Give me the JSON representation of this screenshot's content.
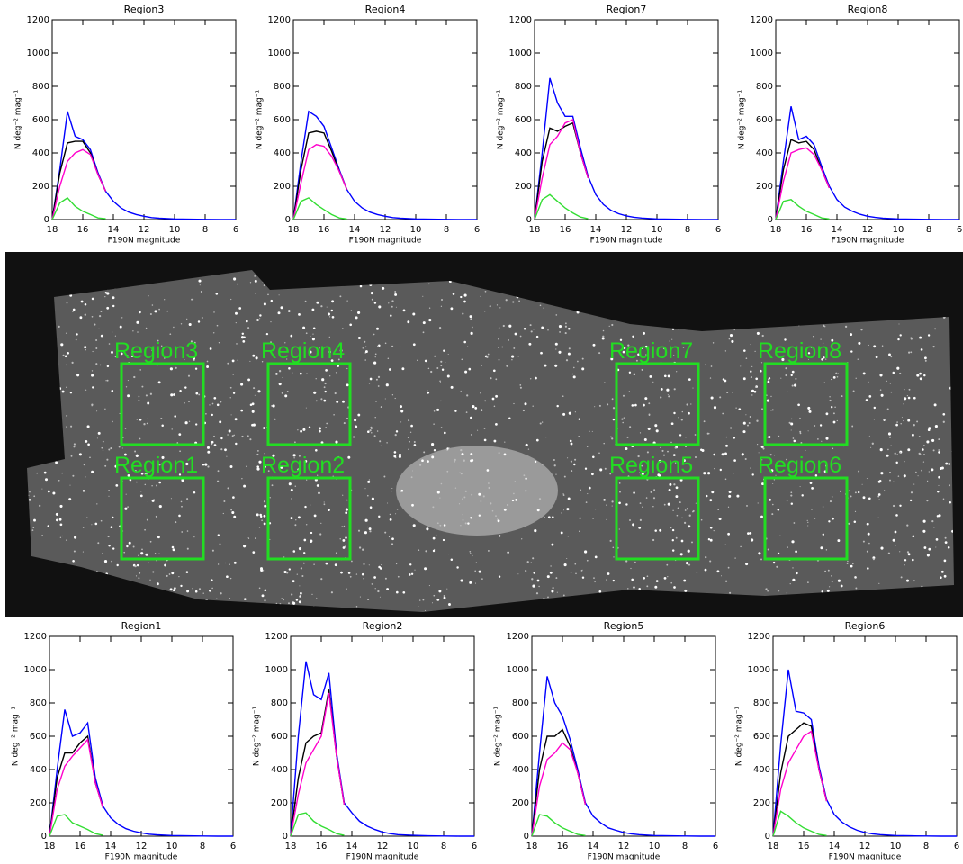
{
  "chart_data": [
    {
      "type": "line",
      "title": "Region3",
      "x_label": "F190N magnitude",
      "y_label": "N deg⁻² mag⁻¹",
      "x": [
        18,
        17.5,
        17,
        16.5,
        16,
        15.5,
        15,
        14.5,
        14,
        13.5,
        13,
        12.5,
        12,
        11.5,
        11,
        10,
        9,
        8,
        7,
        6
      ],
      "xlim": [
        18,
        6
      ],
      "xticks": [
        18,
        16,
        14,
        12,
        10,
        8,
        6
      ],
      "ylim": [
        0,
        1200
      ],
      "yticks": [
        0,
        200,
        400,
        600,
        800,
        1000,
        1200
      ],
      "series": [
        {
          "color": "#0000ff",
          "values": [
            0,
            300,
            650,
            500,
            480,
            420,
            280,
            170,
            110,
            70,
            45,
            30,
            20,
            12,
            8,
            4,
            2,
            1,
            0,
            0
          ]
        },
        {
          "color": "#000000",
          "values": [
            0,
            280,
            460,
            470,
            470,
            400,
            270,
            170,
            null,
            null,
            null,
            null,
            null,
            null,
            null,
            null,
            null,
            null,
            null,
            null
          ]
        },
        {
          "color": "#ff00cc",
          "values": [
            0,
            200,
            350,
            400,
            420,
            390,
            270,
            170,
            null,
            null,
            null,
            null,
            null,
            null,
            null,
            null,
            null,
            null,
            null,
            null
          ]
        },
        {
          "color": "#33dd33",
          "values": [
            0,
            100,
            130,
            80,
            50,
            30,
            10,
            5,
            null,
            null,
            null,
            null,
            null,
            null,
            null,
            null,
            null,
            null,
            null,
            null
          ]
        }
      ]
    },
    {
      "type": "line",
      "title": "Region4",
      "x_label": "F190N magnitude",
      "y_label": "N deg⁻² mag⁻¹",
      "x": [
        18,
        17.5,
        17,
        16.5,
        16,
        15.5,
        15,
        14.5,
        14,
        13.5,
        13,
        12.5,
        12,
        11.5,
        11,
        10,
        9,
        8,
        7,
        6
      ],
      "xlim": [
        18,
        6
      ],
      "xticks": [
        18,
        16,
        14,
        12,
        10,
        8,
        6
      ],
      "ylim": [
        0,
        1200
      ],
      "yticks": [
        0,
        200,
        400,
        600,
        800,
        1000,
        1200
      ],
      "series": [
        {
          "color": "#0000ff",
          "values": [
            0,
            350,
            650,
            620,
            560,
            430,
            300,
            180,
            110,
            70,
            45,
            30,
            20,
            12,
            8,
            4,
            2,
            1,
            0,
            0
          ]
        },
        {
          "color": "#000000",
          "values": [
            0,
            300,
            520,
            530,
            520,
            410,
            290,
            180,
            null,
            null,
            null,
            null,
            null,
            null,
            null,
            null,
            null,
            null,
            null,
            null
          ]
        },
        {
          "color": "#ff00cc",
          "values": [
            0,
            220,
            420,
            450,
            440,
            380,
            290,
            180,
            null,
            null,
            null,
            null,
            null,
            null,
            null,
            null,
            null,
            null,
            null,
            null
          ]
        },
        {
          "color": "#33dd33",
          "values": [
            0,
            110,
            130,
            90,
            60,
            30,
            10,
            3,
            null,
            null,
            null,
            null,
            null,
            null,
            null,
            null,
            null,
            null,
            null,
            null
          ]
        }
      ]
    },
    {
      "type": "line",
      "title": "Region7",
      "x_label": "F190N magnitude",
      "y_label": "N deg⁻² mag⁻¹",
      "x": [
        18,
        17.5,
        17,
        16.5,
        16,
        15.5,
        15,
        14.5,
        14,
        13.5,
        13,
        12.5,
        12,
        11.5,
        11,
        10,
        9,
        8,
        7,
        6
      ],
      "xlim": [
        18,
        6
      ],
      "xticks": [
        18,
        16,
        14,
        12,
        10,
        8,
        6
      ],
      "ylim": [
        0,
        1200
      ],
      "yticks": [
        0,
        200,
        400,
        600,
        800,
        1000,
        1200
      ],
      "series": [
        {
          "color": "#0000ff",
          "values": [
            0,
            400,
            850,
            700,
            620,
            620,
            430,
            260,
            150,
            90,
            55,
            35,
            22,
            14,
            9,
            4,
            2,
            1,
            0,
            0
          ]
        },
        {
          "color": "#000000",
          "values": [
            0,
            350,
            550,
            530,
            560,
            580,
            400,
            250,
            null,
            null,
            null,
            null,
            null,
            null,
            null,
            null,
            null,
            null,
            null,
            null
          ]
        },
        {
          "color": "#ff00cc",
          "values": [
            0,
            250,
            450,
            500,
            580,
            600,
            400,
            250,
            null,
            null,
            null,
            null,
            null,
            null,
            null,
            null,
            null,
            null,
            null,
            null
          ]
        },
        {
          "color": "#33dd33",
          "values": [
            0,
            120,
            150,
            110,
            70,
            40,
            15,
            5,
            null,
            null,
            null,
            null,
            null,
            null,
            null,
            null,
            null,
            null,
            null,
            null
          ]
        }
      ]
    },
    {
      "type": "line",
      "title": "Region8",
      "x_label": "F190N magnitude",
      "y_label": "N deg⁻² mag⁻¹",
      "x": [
        18,
        17.5,
        17,
        16.5,
        16,
        15.5,
        15,
        14.5,
        14,
        13.5,
        13,
        12.5,
        12,
        11.5,
        11,
        10,
        9,
        8,
        7,
        6
      ],
      "xlim": [
        18,
        6
      ],
      "xticks": [
        18,
        16,
        14,
        12,
        10,
        8,
        6
      ],
      "ylim": [
        0,
        1200
      ],
      "yticks": [
        0,
        200,
        400,
        600,
        800,
        1000,
        1200
      ],
      "series": [
        {
          "color": "#0000ff",
          "values": [
            0,
            350,
            680,
            480,
            500,
            450,
            320,
            200,
            120,
            75,
            50,
            32,
            20,
            13,
            8,
            4,
            2,
            1,
            0,
            0
          ]
        },
        {
          "color": "#000000",
          "values": [
            0,
            300,
            480,
            460,
            470,
            420,
            300,
            190,
            null,
            null,
            null,
            null,
            null,
            null,
            null,
            null,
            null,
            null,
            null,
            null
          ]
        },
        {
          "color": "#ff00cc",
          "values": [
            0,
            230,
            400,
            420,
            430,
            390,
            300,
            190,
            null,
            null,
            null,
            null,
            null,
            null,
            null,
            null,
            null,
            null,
            null,
            null
          ]
        },
        {
          "color": "#33dd33",
          "values": [
            0,
            110,
            120,
            80,
            50,
            30,
            10,
            4,
            null,
            null,
            null,
            null,
            null,
            null,
            null,
            null,
            null,
            null,
            null,
            null
          ]
        }
      ]
    },
    {
      "type": "line",
      "title": "Region1",
      "x_label": "F190N magnitude",
      "y_label": "N deg⁻² mag⁻¹",
      "x": [
        18,
        17.5,
        17,
        16.5,
        16,
        15.5,
        15,
        14.5,
        14,
        13.5,
        13,
        12.5,
        12,
        11.5,
        11,
        10,
        9,
        8,
        7,
        6
      ],
      "xlim": [
        18,
        6
      ],
      "xticks": [
        18,
        16,
        14,
        12,
        10,
        8,
        6
      ],
      "ylim": [
        0,
        1200
      ],
      "yticks": [
        0,
        200,
        400,
        600,
        800,
        1000,
        1200
      ],
      "series": [
        {
          "color": "#0000ff",
          "values": [
            0,
            400,
            760,
            600,
            620,
            680,
            350,
            180,
            110,
            70,
            45,
            30,
            20,
            12,
            8,
            4,
            2,
            1,
            0,
            0
          ]
        },
        {
          "color": "#000000",
          "values": [
            0,
            350,
            500,
            500,
            560,
            600,
            320,
            170,
            null,
            null,
            null,
            null,
            null,
            null,
            null,
            null,
            null,
            null,
            null,
            null
          ]
        },
        {
          "color": "#ff00cc",
          "values": [
            0,
            280,
            420,
            480,
            530,
            580,
            320,
            170,
            null,
            null,
            null,
            null,
            null,
            null,
            null,
            null,
            null,
            null,
            null,
            null
          ]
        },
        {
          "color": "#33dd33",
          "values": [
            0,
            120,
            130,
            80,
            60,
            40,
            15,
            5,
            null,
            null,
            null,
            null,
            null,
            null,
            null,
            null,
            null,
            null,
            null,
            null
          ]
        }
      ]
    },
    {
      "type": "line",
      "title": "Region2",
      "x_label": "F190N magnitude",
      "y_label": "N deg⁻² mag⁻¹",
      "x": [
        18,
        17.5,
        17,
        16.5,
        16,
        15.5,
        15,
        14.5,
        14,
        13.5,
        13,
        12.5,
        12,
        11.5,
        11,
        10,
        9,
        8,
        7,
        6
      ],
      "xlim": [
        18,
        6
      ],
      "xticks": [
        18,
        16,
        14,
        12,
        10,
        8,
        6
      ],
      "ylim": [
        0,
        1200
      ],
      "yticks": [
        0,
        200,
        400,
        600,
        800,
        1000,
        1200
      ],
      "series": [
        {
          "color": "#0000ff",
          "values": [
            0,
            600,
            1050,
            850,
            820,
            980,
            500,
            200,
            140,
            90,
            60,
            40,
            25,
            15,
            9,
            5,
            2,
            1,
            0,
            0
          ]
        },
        {
          "color": "#000000",
          "values": [
            0,
            350,
            560,
            600,
            620,
            880,
            480,
            190,
            null,
            null,
            null,
            null,
            null,
            null,
            null,
            null,
            null,
            null,
            null,
            null
          ]
        },
        {
          "color": "#ff00cc",
          "values": [
            0,
            250,
            440,
            520,
            600,
            860,
            480,
            190,
            null,
            null,
            null,
            null,
            null,
            null,
            null,
            null,
            null,
            null,
            null,
            null
          ]
        },
        {
          "color": "#33dd33",
          "values": [
            0,
            130,
            140,
            90,
            60,
            40,
            15,
            5,
            null,
            null,
            null,
            null,
            null,
            null,
            null,
            null,
            null,
            null,
            null,
            null
          ]
        }
      ]
    },
    {
      "type": "line",
      "title": "Region5",
      "x_label": "F190N magnitude",
      "y_label": "N deg⁻² mag⁻¹",
      "x": [
        18,
        17.5,
        17,
        16.5,
        16,
        15.5,
        15,
        14.5,
        14,
        13.5,
        13,
        12.5,
        12,
        11.5,
        11,
        10,
        9,
        8,
        7,
        6
      ],
      "xlim": [
        18,
        6
      ],
      "xticks": [
        18,
        16,
        14,
        12,
        10,
        8,
        6
      ],
      "ylim": [
        0,
        1200
      ],
      "yticks": [
        0,
        200,
        400,
        600,
        800,
        1000,
        1200
      ],
      "series": [
        {
          "color": "#0000ff",
          "values": [
            0,
            500,
            960,
            800,
            720,
            580,
            400,
            200,
            120,
            80,
            50,
            35,
            22,
            14,
            9,
            4,
            2,
            1,
            0,
            0
          ]
        },
        {
          "color": "#000000",
          "values": [
            0,
            400,
            600,
            600,
            640,
            540,
            380,
            190,
            null,
            null,
            null,
            null,
            null,
            null,
            null,
            null,
            null,
            null,
            null,
            null
          ]
        },
        {
          "color": "#ff00cc",
          "values": [
            0,
            300,
            460,
            500,
            560,
            520,
            380,
            190,
            null,
            null,
            null,
            null,
            null,
            null,
            null,
            null,
            null,
            null,
            null,
            null
          ]
        },
        {
          "color": "#33dd33",
          "values": [
            0,
            130,
            120,
            80,
            50,
            30,
            10,
            4,
            null,
            null,
            null,
            null,
            null,
            null,
            null,
            null,
            null,
            null,
            null,
            null
          ]
        }
      ]
    },
    {
      "type": "line",
      "title": "Region6",
      "x_label": "F190N magnitude",
      "y_label": "N deg⁻² mag⁻¹",
      "x": [
        18,
        17.5,
        17,
        16.5,
        16,
        15.5,
        15,
        14.5,
        14,
        13.5,
        13,
        12.5,
        12,
        11.5,
        11,
        10,
        9,
        8,
        7,
        6
      ],
      "xlim": [
        18,
        6
      ],
      "xticks": [
        18,
        16,
        14,
        12,
        10,
        8,
        6
      ],
      "ylim": [
        0,
        1200
      ],
      "yticks": [
        0,
        200,
        400,
        600,
        800,
        1000,
        1200
      ],
      "series": [
        {
          "color": "#0000ff",
          "values": [
            0,
            550,
            1000,
            750,
            740,
            700,
            420,
            220,
            130,
            85,
            55,
            35,
            22,
            14,
            9,
            4,
            2,
            1,
            0,
            0
          ]
        },
        {
          "color": "#000000",
          "values": [
            0,
            380,
            600,
            640,
            680,
            660,
            400,
            210,
            null,
            null,
            null,
            null,
            null,
            null,
            null,
            null,
            null,
            null,
            null,
            null
          ]
        },
        {
          "color": "#ff00cc",
          "values": [
            0,
            280,
            440,
            520,
            600,
            630,
            400,
            210,
            null,
            null,
            null,
            null,
            null,
            null,
            null,
            null,
            null,
            null,
            null,
            null
          ]
        },
        {
          "color": "#33dd33",
          "values": [
            0,
            150,
            120,
            80,
            50,
            30,
            10,
            4,
            null,
            null,
            null,
            null,
            null,
            null,
            null,
            null,
            null,
            null,
            null,
            null
          ]
        }
      ]
    }
  ],
  "image": {
    "labels": [
      "Region3",
      "Region4",
      "Region7",
      "Region8",
      "Region1",
      "Region2",
      "Region5",
      "Region6"
    ]
  }
}
